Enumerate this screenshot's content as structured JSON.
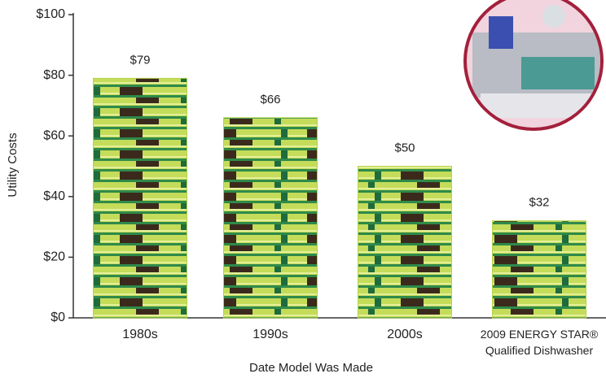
{
  "chart_data": {
    "type": "bar",
    "categories": [
      "1980s",
      "1990s",
      "2000s",
      "2009 ENERGY STAR®\nQualified Dishwasher"
    ],
    "values": [
      79,
      66,
      50,
      32
    ],
    "value_labels": [
      "$79",
      "$66",
      "$50",
      "$32"
    ],
    "y_label": "Utility Costs",
    "x_label": "Date Model Was Made",
    "ylim": [
      0,
      100
    ],
    "yticks": [
      {
        "value": 0,
        "label": "$0"
      },
      {
        "value": 20,
        "label": "$20"
      },
      {
        "value": 40,
        "label": "$40"
      },
      {
        "value": 60,
        "label": "$60"
      },
      {
        "value": 80,
        "label": "$80"
      },
      {
        "value": 100,
        "label": "$100"
      }
    ],
    "color": "#b5d34a"
  }
}
